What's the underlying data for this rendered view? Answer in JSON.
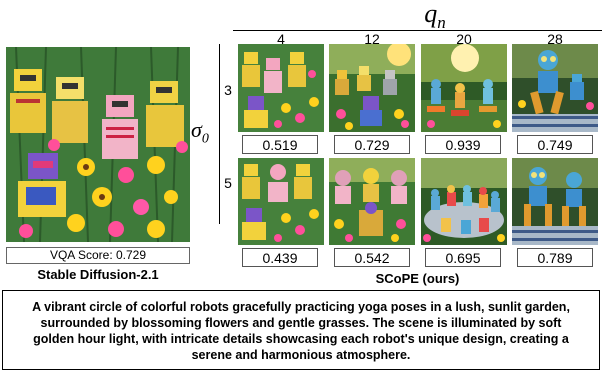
{
  "axis": {
    "qn_symbol": "q",
    "qn_subscript": "n",
    "sigma_symbol": "σ",
    "sigma_subscript": "0"
  },
  "columns": [
    "4",
    "12",
    "20",
    "28"
  ],
  "rows": [
    {
      "label": "3",
      "scores": [
        "0.519",
        "0.729",
        "0.939",
        "0.749"
      ]
    },
    {
      "label": "5",
      "scores": [
        "0.439",
        "0.542",
        "0.695",
        "0.789"
      ]
    }
  ],
  "baseline": {
    "score_text": "VQA Score: 0.729",
    "caption": "Stable Diffusion-2.1"
  },
  "method_caption": "SCoPE (ours)",
  "prompt": "A vibrant circle of colorful robots gracefully practicing yoga poses in a lush, sunlit garden, surrounded by blossoming flowers and gentle grasses. The scene is illuminated by soft golden hour light, with intricate details showcasing each robot's unique design, creating a serene and harmonious atmosphere.",
  "image_themes": {
    "baseline": "painted robots among flowers",
    "grid": [
      [
        "painted robots field",
        "robots in sunny garden",
        "robots on yoga mats in park",
        "blue robot in yoga pose"
      ],
      [
        "painted robots field",
        "robots in sunny garden",
        "circle of robots on mats",
        "two blue robots in yoga pose"
      ]
    ]
  }
}
